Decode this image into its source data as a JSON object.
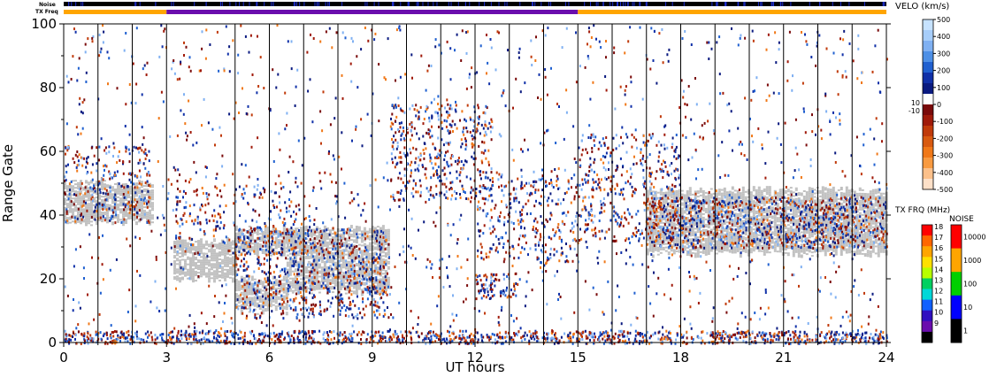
{
  "chart_data": {
    "type": "heatmap",
    "title": "",
    "xlabel": "UT hours",
    "ylabel": "Range Gate",
    "xlim": [
      0,
      24
    ],
    "ylim": [
      0,
      100
    ],
    "x_ticks": [
      "0",
      "3",
      "6",
      "9",
      "12",
      "15",
      "18",
      "21",
      "24"
    ],
    "y_ticks": [
      "0",
      "20",
      "40",
      "60",
      "80",
      "100"
    ],
    "top_bars": {
      "noise_label": "Noise",
      "txfreq_label": "TX Freq",
      "txfreq_segments": [
        {
          "start": 0,
          "end": 3,
          "color": "#ffa500"
        },
        {
          "start": 3,
          "end": 15,
          "color": "#6a0dad"
        },
        {
          "start": 15,
          "end": 24,
          "color": "#ffa500"
        }
      ]
    },
    "scan_boundaries": [
      1.0,
      2.0,
      3.0,
      5.0,
      6.0,
      7.0,
      8.0,
      9.0,
      10.0,
      11.0,
      12.0,
      13.0,
      14.0,
      15.0,
      16.0,
      17.0,
      18.0,
      19.0,
      20.0,
      21.0,
      22.0,
      23.0
    ],
    "ground_scatter_regions": [
      {
        "x": [
          0.0,
          2.6
        ],
        "y": [
          38,
          50
        ]
      },
      {
        "x": [
          3.2,
          5.0
        ],
        "y": [
          20,
          32
        ]
      },
      {
        "x": [
          5.0,
          7.0
        ],
        "y": [
          28,
          36
        ]
      },
      {
        "x": [
          5.0,
          6.5
        ],
        "y": [
          10,
          20
        ]
      },
      {
        "x": [
          6.5,
          9.5
        ],
        "y": [
          16,
          36
        ]
      },
      {
        "x": [
          17.0,
          24.0
        ],
        "y": [
          28,
          48
        ]
      }
    ],
    "velocity_colorbar": {
      "title": "VELO (km/s)",
      "ticks": [
        "500",
        "400",
        "300",
        "200",
        "100",
        "0",
        "-100",
        "-200",
        "-300",
        "-400",
        "-500"
      ],
      "inner_ticks": [
        "10",
        "-10"
      ],
      "colors": [
        "#c6e2ff",
        "#a6cdfa",
        "#7fb0f2",
        "#4d8fe6",
        "#2060d0",
        "#1030a8",
        "#0a1a80",
        "#ffffff",
        "#7a0a0a",
        "#a01a0a",
        "#c03a0a",
        "#d85a10",
        "#f07818",
        "#f89a40",
        "#fcc08a",
        "#fde0c8"
      ]
    },
    "txfreq_colorbar": {
      "title": "TX FRQ (MHz)",
      "ticks": [
        "18",
        "17",
        "16",
        "15",
        "14",
        "13",
        "12",
        "11",
        "10",
        "9"
      ],
      "colors": [
        "#ff0000",
        "#ff6600",
        "#ffa500",
        "#ffe000",
        "#b8ff00",
        "#00d060",
        "#00d8d8",
        "#1060ff",
        "#3010c0",
        "#6a0dad",
        "#000000"
      ]
    },
    "noise_colorbar": {
      "title": "NOISE",
      "ticks": [
        "10000",
        "1000",
        "100",
        "10",
        "1"
      ],
      "colors": [
        "#ff0000",
        "#ffa500",
        "#00d000",
        "#0000ff",
        "#000000"
      ]
    },
    "palette": {
      "ground": "#c0c0c0",
      "pos": [
        "#0a1a80",
        "#1030a8",
        "#2060d0",
        "#7fb0f2"
      ],
      "neg": [
        "#7a0a0a",
        "#a01a0a",
        "#c03a0a",
        "#f07818"
      ]
    }
  }
}
